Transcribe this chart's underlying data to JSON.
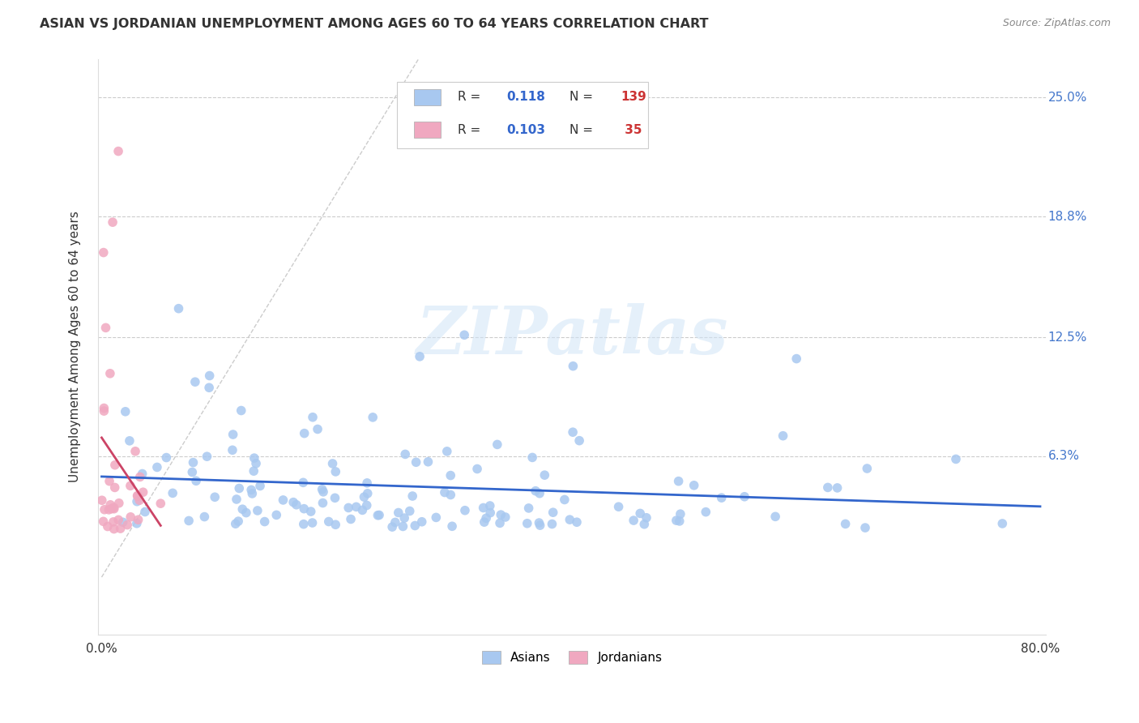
{
  "title": "ASIAN VS JORDANIAN UNEMPLOYMENT AMONG AGES 60 TO 64 YEARS CORRELATION CHART",
  "source": "Source: ZipAtlas.com",
  "ylabel_label": "Unemployment Among Ages 60 to 64 years",
  "xlim": [
    0.0,
    0.8
  ],
  "ylim": [
    -0.03,
    0.27
  ],
  "ytick_vals": [
    0.063,
    0.125,
    0.188,
    0.25
  ],
  "ytick_labels": [
    "6.3%",
    "12.5%",
    "18.8%",
    "25.0%"
  ],
  "xtick_vals": [
    0.0,
    0.8
  ],
  "xtick_labels": [
    "0.0%",
    "80.0%"
  ],
  "asian_R": 0.118,
  "asian_N": 139,
  "jordan_R": 0.103,
  "jordan_N": 35,
  "asian_color": "#a8c8f0",
  "jordan_color": "#f0a8c0",
  "trend_asian_color": "#3366cc",
  "trend_jordan_color": "#cc4466",
  "diagonal_color": "#cccccc",
  "background_color": "#ffffff",
  "watermark": "ZIPatlas",
  "seed": 42
}
